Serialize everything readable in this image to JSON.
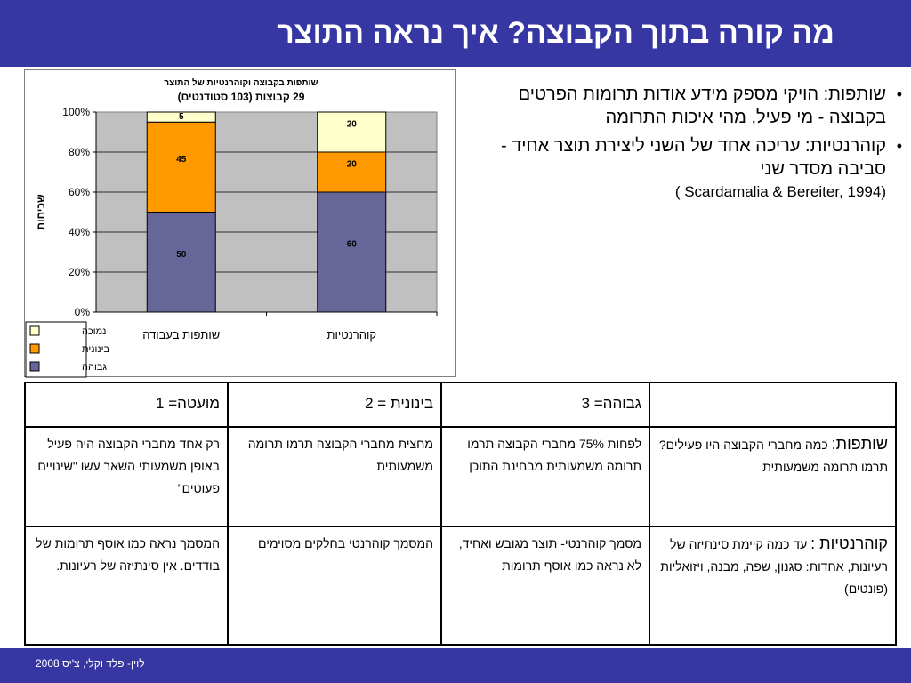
{
  "header": {
    "title": "מה קורה בתוך הקבוצה? איך נראה התוצר"
  },
  "bullets": [
    {
      "text": "שותפות: הויקי מספק מידע אודות תרומות הפרטים בקבוצה - מי פעיל, מהי איכות התרומה",
      "sub": ""
    },
    {
      "text": "קוהרנטיות: עריכה אחד של השני ליצירת תוצר אחיד - סביבה מסדר שני",
      "sub": "(Scardamalia & Bereiter, 1994 )"
    }
  ],
  "chart_data": {
    "type": "bar",
    "stacked": true,
    "title": "שותפות בקבוצה וקוהרנטיות של התוצר",
    "subtitle": "29 קבוצות (103 סטודנטים)",
    "xlabel": "",
    "ylabel": "שכיחות",
    "ylim": [
      0,
      100
    ],
    "yticks": [
      "0%",
      "20%",
      "40%",
      "60%",
      "80%",
      "100%"
    ],
    "categories": [
      "שותפות בעבודה",
      "קוהרנטיות"
    ],
    "series": [
      {
        "name": "גבוהה",
        "color": "#666699",
        "values": [
          50,
          60
        ]
      },
      {
        "name": "בינונית",
        "color": "#ff9900",
        "values": [
          45,
          20
        ]
      },
      {
        "name": "נמוכה",
        "color": "#ffffcc",
        "values": [
          5,
          20
        ]
      }
    ],
    "legend": "bottom-left",
    "plot_background": "#c0c0c0",
    "grid": true
  },
  "rubric": {
    "headers": [
      "",
      "גבוהה= 3",
      "בינונית = 2",
      "מועטה= 1"
    ],
    "rows": [
      {
        "label_main": "שותפות:",
        "label_rest": " כמה מחברי הקבוצה היו פעילים? תרמו תרומה משמעותית",
        "cells": [
          "לפחות 75% מחברי הקבוצה תרמו תרומה משמעותית מבחינת התוכן",
          "מחצית מחברי הקבוצה תרמו תרומה משמעותית",
          "רק אחד מחברי הקבוצה היה פעיל באופן משמעותי השאר עשו \"שינויים פעוטים\""
        ]
      },
      {
        "label_main": "קוהרנטיות :",
        "label_rest": " עד כמה קיימת סינתיזה של רעיונות, אחדות: סגנון, שפה, מבנה, ויזואליות (פונטים)",
        "cells": [
          "מסמך קוהרנטי- תוצר מגובש ואחיד, לא נראה כמו אוסף תרומות",
          "המסמך קוהרנטי בחלקים מסוימים",
          "המסמך נראה כמו אוסף תרומות של בודדים. אין סינתיזה של רעיונות."
        ]
      }
    ]
  },
  "footer": {
    "text": "לוין- פלד וקלי, צ'יס 2008"
  }
}
